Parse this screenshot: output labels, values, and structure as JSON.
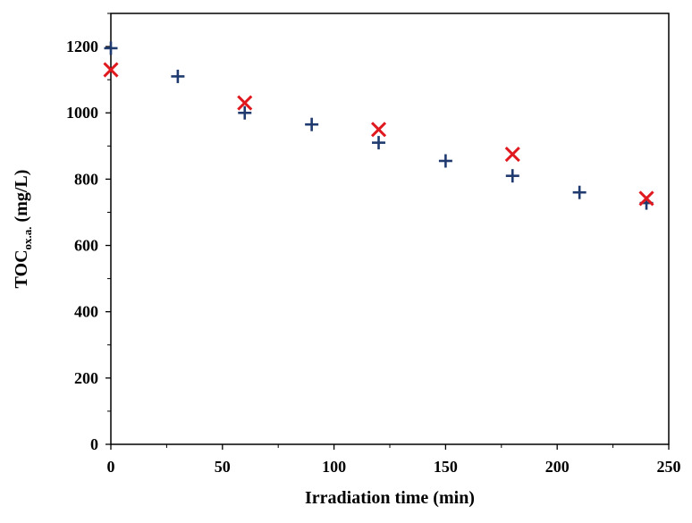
{
  "chart_data": {
    "type": "scatter",
    "xlabel": "Irradiation time (min)",
    "ylabel": {
      "main": "TOC",
      "subscript": "ox.a.",
      "unit": " (mg/L)"
    },
    "xlim": [
      0,
      250
    ],
    "ylim": [
      0,
      1300
    ],
    "x_ticks": [
      0,
      50,
      100,
      150,
      200,
      250
    ],
    "y_ticks": [
      0,
      200,
      400,
      600,
      800,
      1000,
      1200
    ],
    "grid": false,
    "legend": "none",
    "series": [
      {
        "marker": "plus",
        "color": "#1f3a6e",
        "x": [
          0,
          30,
          60,
          90,
          120,
          150,
          180,
          210,
          240
        ],
        "y": [
          1195,
          1110,
          1000,
          965,
          910,
          855,
          810,
          760,
          728
        ]
      },
      {
        "marker": "x",
        "color": "#e0191f",
        "x": [
          0,
          60,
          120,
          180,
          240
        ],
        "y": [
          1130,
          1030,
          950,
          875,
          742
        ]
      }
    ]
  }
}
